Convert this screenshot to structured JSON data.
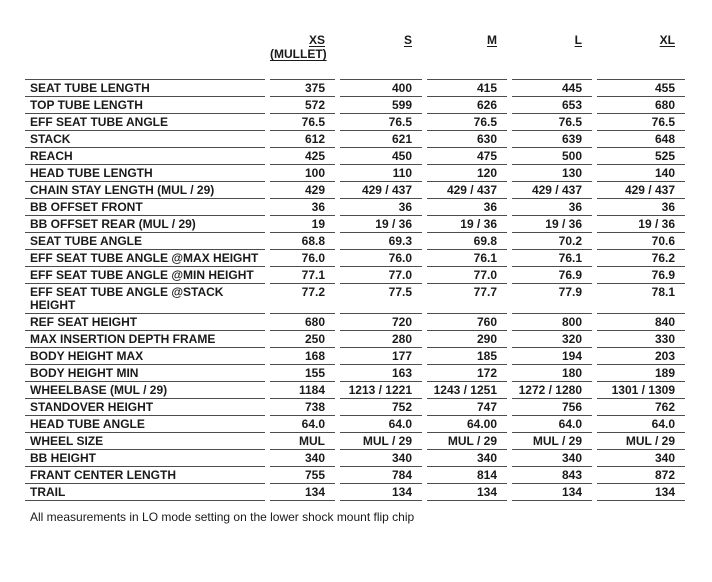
{
  "header": {
    "size_columns": [
      {
        "label": "XS",
        "sublabel": "(MULLET)"
      },
      {
        "label": "S",
        "sublabel": ""
      },
      {
        "label": "M",
        "sublabel": ""
      },
      {
        "label": "L",
        "sublabel": ""
      },
      {
        "label": "XL",
        "sublabel": ""
      }
    ]
  },
  "rows": [
    {
      "label": "SEAT TUBE LENGTH",
      "values": [
        "375",
        "400",
        "415",
        "445",
        "455"
      ]
    },
    {
      "label": "TOP TUBE LENGTH",
      "values": [
        "572",
        "599",
        "626",
        "653",
        "680"
      ]
    },
    {
      "label": "EFF SEAT TUBE ANGLE",
      "values": [
        "76.5",
        "76.5",
        "76.5",
        "76.5",
        "76.5"
      ]
    },
    {
      "label": "STACK",
      "values": [
        "612",
        "621",
        "630",
        "639",
        "648"
      ]
    },
    {
      "label": "REACH",
      "values": [
        "425",
        "450",
        "475",
        "500",
        "525"
      ]
    },
    {
      "label": "HEAD TUBE LENGTH",
      "values": [
        "100",
        "110",
        "120",
        "130",
        "140"
      ]
    },
    {
      "label": "CHAIN STAY LENGTH (MUL / 29)",
      "values": [
        "429",
        "429 / 437",
        "429 / 437",
        "429 / 437",
        "429 / 437"
      ]
    },
    {
      "label": "BB OFFSET FRONT",
      "values": [
        "36",
        "36",
        "36",
        "36",
        "36"
      ]
    },
    {
      "label": "BB OFFSET REAR (MUL / 29)",
      "values": [
        "19",
        "19 / 36",
        "19 / 36",
        "19 / 36",
        "19 / 36"
      ]
    },
    {
      "label": "SEAT TUBE ANGLE",
      "values": [
        "68.8",
        "69.3",
        "69.8",
        "70.2",
        "70.6"
      ]
    },
    {
      "label": "EFF SEAT TUBE ANGLE @MAX HEIGHT",
      "values": [
        "76.0",
        "76.0",
        "76.1",
        "76.1",
        "76.2"
      ]
    },
    {
      "label": "EFF SEAT TUBE ANGLE @MIN HEIGHT",
      "values": [
        "77.1",
        "77.0",
        "77.0",
        "76.9",
        "76.9"
      ]
    },
    {
      "label": "EFF SEAT TUBE ANGLE @STACK\nHEIGHT",
      "values": [
        "77.2",
        "77.5",
        "77.7",
        "77.9",
        "78.1"
      ]
    },
    {
      "label": "REF SEAT HEIGHT",
      "values": [
        "680",
        "720",
        "760",
        "800",
        "840"
      ]
    },
    {
      "label": "MAX INSERTION DEPTH FRAME",
      "values": [
        "250",
        "280",
        "290",
        "320",
        "330"
      ]
    },
    {
      "label": "BODY HEIGHT MAX",
      "values": [
        "168",
        "177",
        "185",
        "194",
        "203"
      ]
    },
    {
      "label": "BODY HEIGHT MIN",
      "values": [
        "155",
        "163",
        "172",
        "180",
        "189"
      ]
    },
    {
      "label": "WHEELBASE (MUL / 29)",
      "values": [
        "1184",
        "1213 / 1221",
        "1243 / 1251",
        "1272 / 1280",
        "1301 / 1309"
      ]
    },
    {
      "label": "STANDOVER HEIGHT",
      "values": [
        "738",
        "752",
        "747",
        "756",
        "762"
      ]
    },
    {
      "label": "HEAD TUBE ANGLE",
      "values": [
        "64.0",
        "64.0",
        "64.00",
        "64.0",
        "64.0"
      ]
    },
    {
      "label": "WHEEL SIZE",
      "values": [
        "MUL",
        "MUL / 29",
        "MUL / 29",
        "MUL / 29",
        "MUL / 29"
      ]
    },
    {
      "label": "BB HEIGHT",
      "values": [
        "340",
        "340",
        "340",
        "340",
        "340"
      ]
    },
    {
      "label": "FRANT CENTER LENGTH",
      "values": [
        "755",
        "784",
        "814",
        "843",
        "872"
      ]
    },
    {
      "label": "TRAIL",
      "values": [
        "134",
        "134",
        "134",
        "134",
        "134"
      ]
    }
  ],
  "footnote": "All measurements in LO mode setting on the lower shock mount flip chip",
  "colors": {
    "text": "#1a1a1a",
    "rule_line": "#4d4d4d",
    "background": "#ffffff"
  }
}
